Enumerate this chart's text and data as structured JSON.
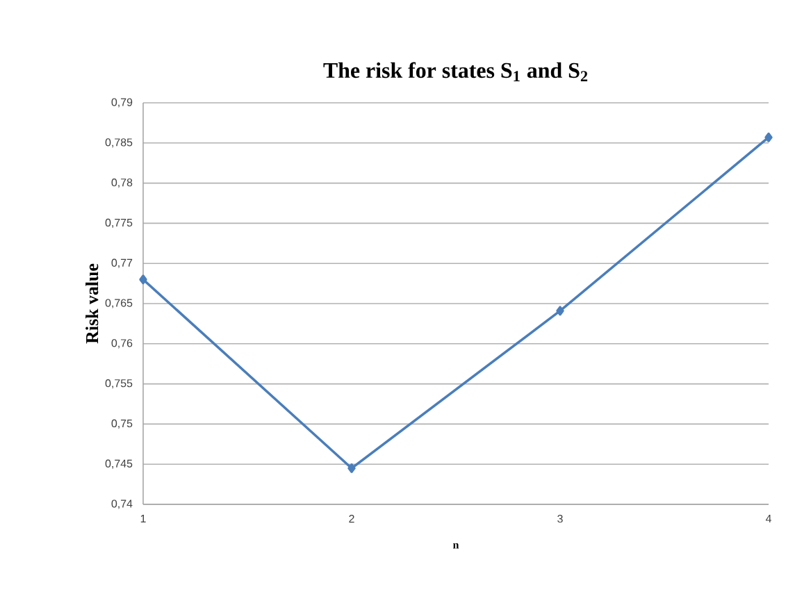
{
  "chart_data": {
    "type": "line",
    "title": "The risk for states S$_{1}$ and S$_{2}$",
    "xlabel": "n",
    "ylabel": "Risk value",
    "x": [
      1,
      2,
      3,
      4
    ],
    "series": [
      {
        "color": "#4a7ebb",
        "values": [
          0.768,
          0.7445,
          0.7641,
          0.7857
        ]
      }
    ],
    "xlim": [
      1,
      4
    ],
    "xticks": [
      1,
      2,
      3,
      4
    ],
    "ylim": [
      0.74,
      0.79
    ],
    "yticks": [
      {
        "value": 0.74,
        "label": "0,74"
      },
      {
        "value": 0.745,
        "label": "0,745"
      },
      {
        "value": 0.75,
        "label": "0,75"
      },
      {
        "value": 0.755,
        "label": "0,755"
      },
      {
        "value": 0.76,
        "label": "0,76"
      },
      {
        "value": 0.765,
        "label": "0,765"
      },
      {
        "value": 0.77,
        "label": "0,77"
      },
      {
        "value": 0.775,
        "label": "0,775"
      },
      {
        "value": 0.78,
        "label": "0,78"
      },
      {
        "value": 0.785,
        "label": "0,785"
      },
      {
        "value": 0.79,
        "label": "0,79"
      }
    ],
    "grid": "y",
    "legend": false,
    "marker": "diamond",
    "line_style": "solid"
  }
}
